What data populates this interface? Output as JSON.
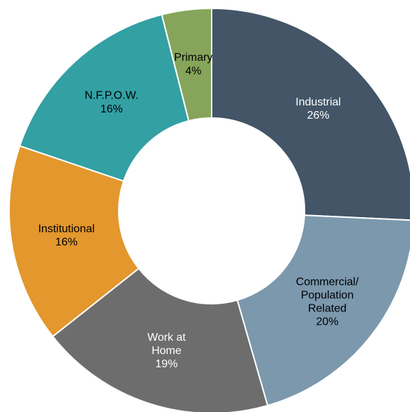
{
  "chart_data": {
    "type": "donut",
    "categories": [
      "Industrial",
      "Commercial/\nPopulation\nRelated",
      "Work at\nHome",
      "Institutional",
      "N.F.P.O.W.",
      "Primary"
    ],
    "values": [
      26,
      20,
      19,
      16,
      16,
      4
    ],
    "value_labels": [
      "26%",
      "20%",
      "19%",
      "16%",
      "16%",
      "4%"
    ],
    "colors": [
      "#435567",
      "#7b98ad",
      "#6d6d6d",
      "#e3972d",
      "#33a0a4",
      "#86a55a"
    ],
    "label_colors": [
      "#ffffff",
      "#000000",
      "#ffffff",
      "#000000",
      "#000000",
      "#000000"
    ]
  }
}
